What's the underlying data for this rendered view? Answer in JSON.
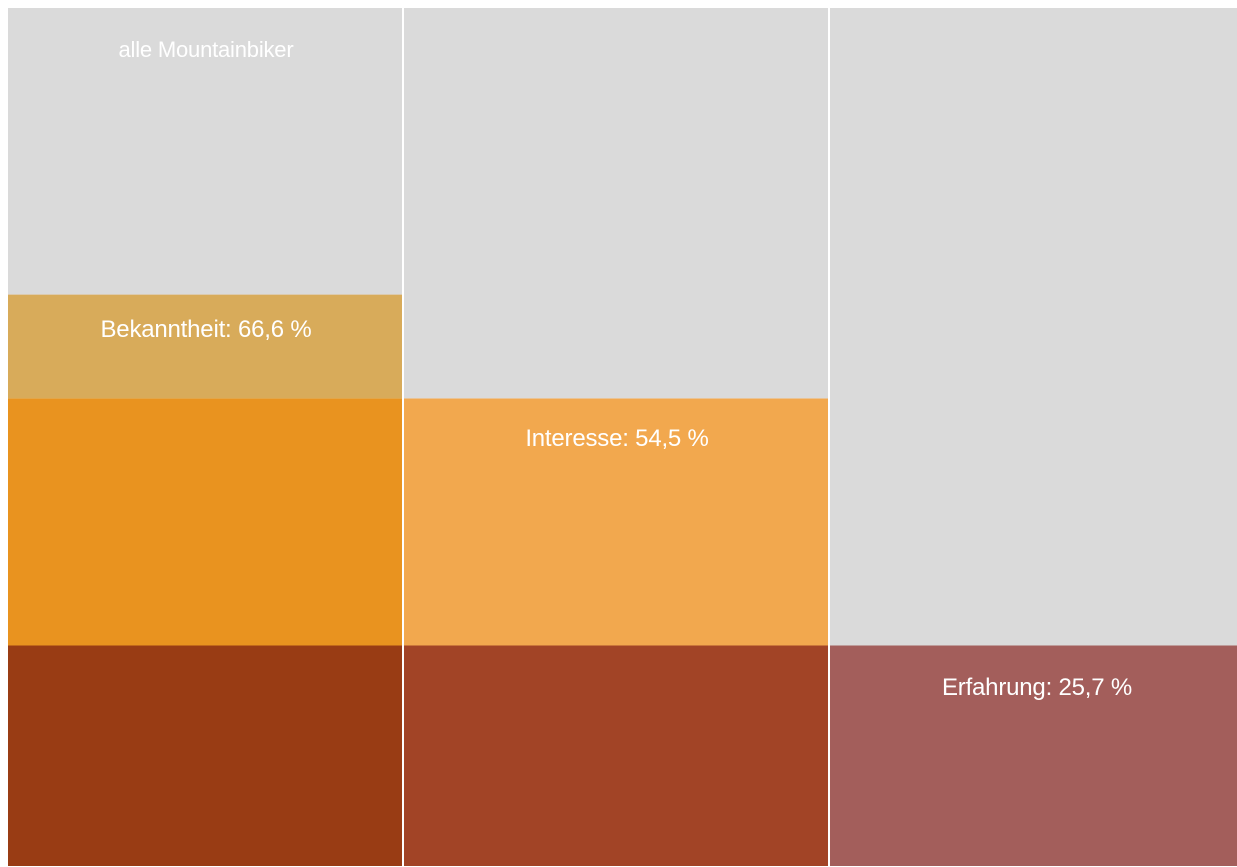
{
  "chart_data": {
    "type": "bar",
    "stacked": true,
    "ylim": [
      0,
      100
    ],
    "title": "",
    "xlabel": "",
    "ylabel": "",
    "columns": [
      {
        "label": "alle Mountainbiker",
        "value": 100,
        "segments": [
          {
            "from": 0,
            "to": 25.7,
            "color": "#993c14"
          },
          {
            "from": 25.7,
            "to": 54.5,
            "color": "#e9931f"
          },
          {
            "from": 54.5,
            "to": 66.6,
            "color": "#d8ab5a"
          },
          {
            "from": 66.6,
            "to": 100,
            "color": "#dadada"
          }
        ]
      },
      {
        "label": "Bekanntheit: 66,6 %",
        "value": 66.6,
        "segments": [
          {
            "from": 0,
            "to": 25.7,
            "color": "#a24426"
          },
          {
            "from": 25.7,
            "to": 54.5,
            "color": "#f2a84e"
          },
          {
            "from": 54.5,
            "to": 100,
            "color": "#dadada"
          }
        ]
      },
      {
        "label": "Interesse: 54,5 %",
        "value": 54.5,
        "segments": [
          {
            "from": 0,
            "to": 25.7,
            "color": "#a35e5b"
          },
          {
            "from": 25.7,
            "to": 100,
            "color": "#dadada"
          }
        ]
      },
      {
        "label": "Erfahrung: 25,7 %",
        "value": 25.7
      }
    ]
  }
}
